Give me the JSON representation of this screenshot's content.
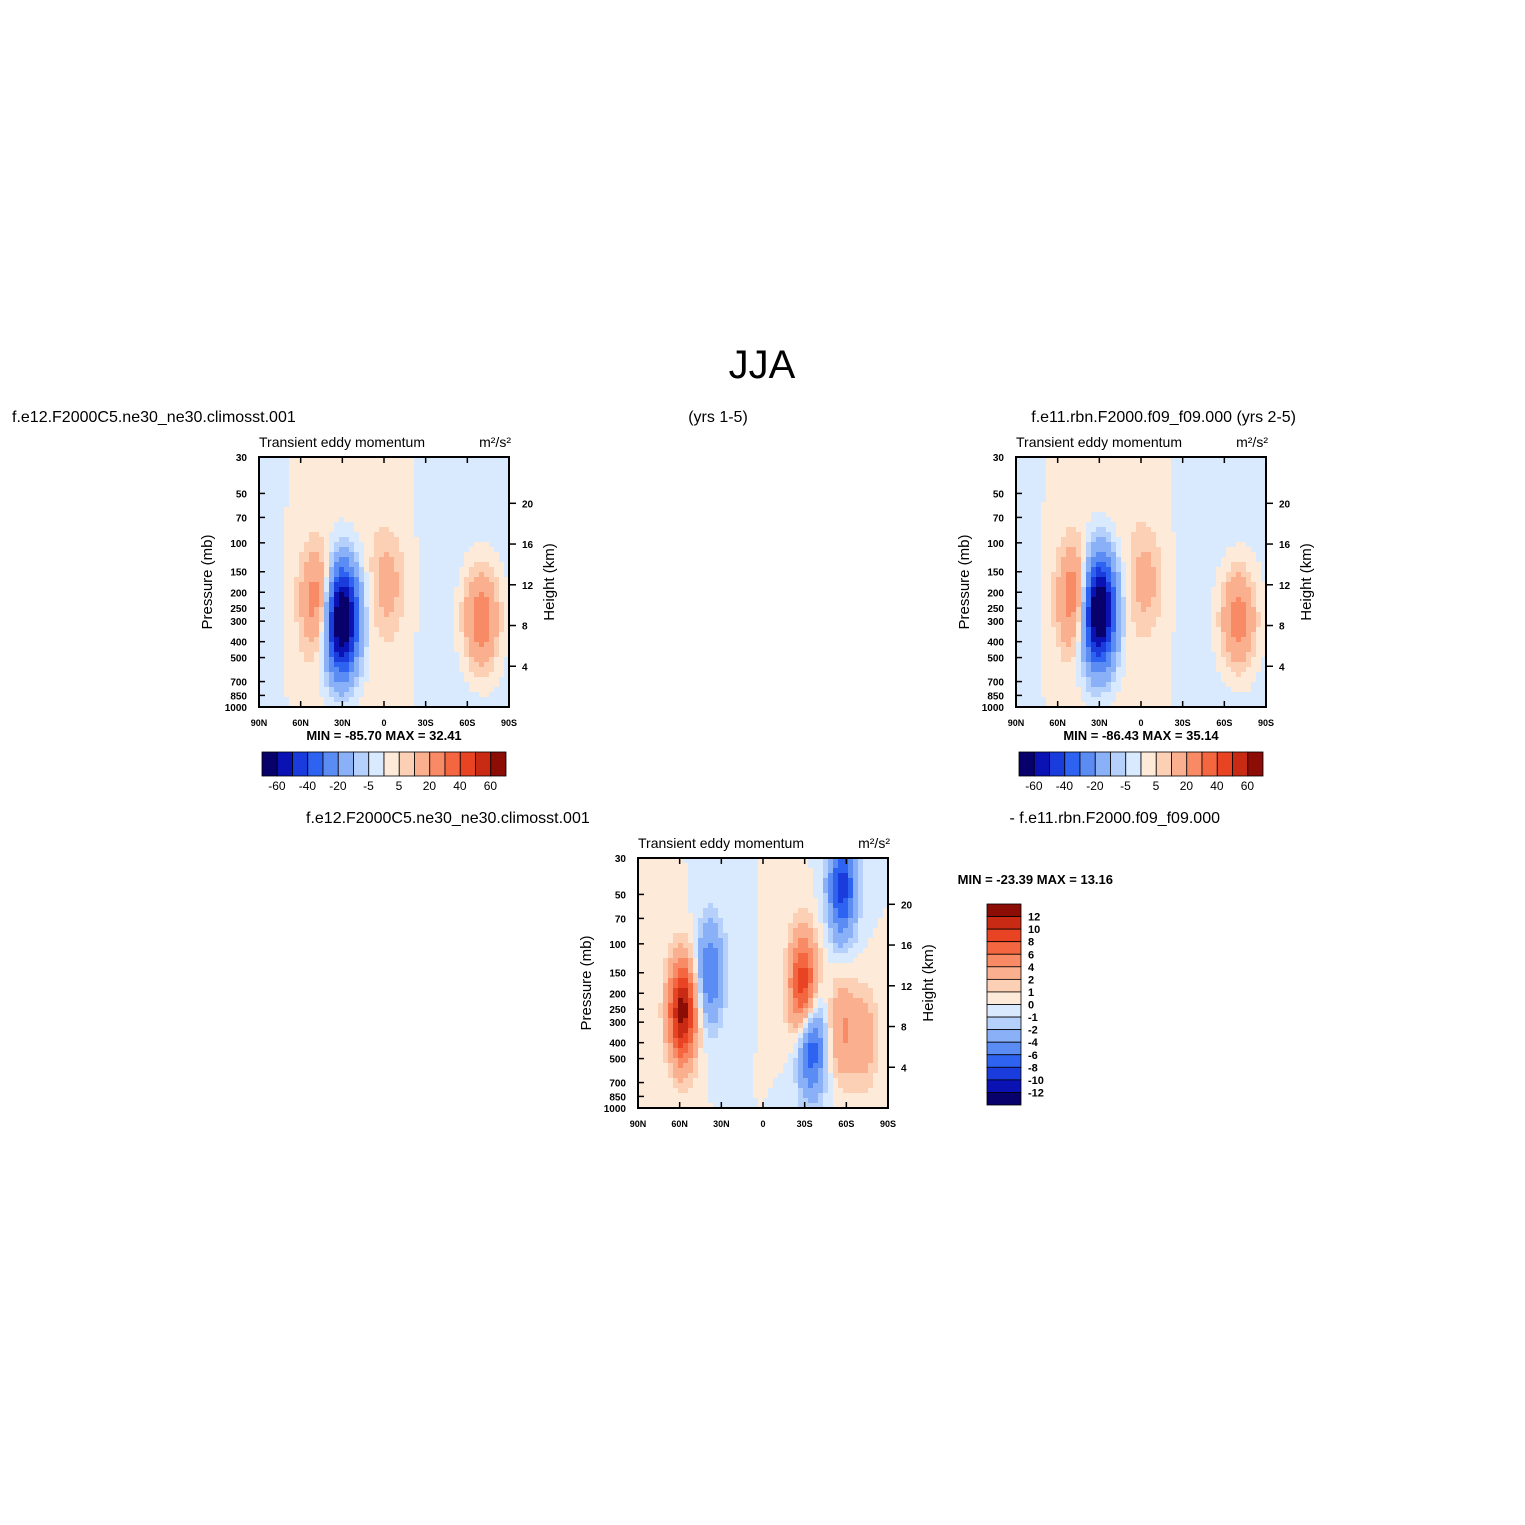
{
  "figure": {
    "title": "JJA",
    "case1_label": "f.e12.F2000C5.ne30_ne30.climosst.001",
    "case1_years": "(yrs 1-5)",
    "case2_label": "f.e11.rbn.F2000.f09_f09.000 (yrs 2-5)",
    "diff_label_a": "f.e12.F2000C5.ne30_ne30.climosst.001",
    "diff_label_b": "- f.e11.rbn.F2000.f09_f09.000"
  },
  "colors": {
    "diverging": [
      "#08006b",
      "#0a12b4",
      "#1a3cdc",
      "#2e62f0",
      "#5a8cf4",
      "#8ab0f8",
      "#b6d0fc",
      "#daeafe",
      "#feead8",
      "#fcd0b4",
      "#fab08e",
      "#f88a66",
      "#f46640",
      "#e84424",
      "#c82a14",
      "#8c0c06"
    ]
  },
  "chart_data": [
    {
      "type": "heatmap",
      "panel": "case1",
      "title": "Transient eddy momentum",
      "units": "m²/s²",
      "ylabel": "Pressure (mb)",
      "y2label": "Height (km)",
      "x_ticks": [
        "90N",
        "60N",
        "30N",
        "0",
        "30S",
        "60S",
        "90S"
      ],
      "y_ticks": [
        "30",
        "50",
        "70",
        "100",
        "150",
        "200",
        "250",
        "300",
        "400",
        "500",
        "700",
        "850",
        "1000"
      ],
      "y2_ticks": [
        "20",
        "16",
        "12",
        "8",
        "4"
      ],
      "stats": "MIN = -85.70   MAX =  32.41",
      "min": -85.7,
      "max": 32.41,
      "colorbar": {
        "orientation": "horizontal",
        "labels": [
          "-60",
          "-40",
          "-20",
          "-5",
          "5",
          "20",
          "40",
          "60"
        ]
      },
      "features": [
        {
          "lat": 31,
          "p": 290,
          "amp": -85.7
        },
        {
          "lat": 46,
          "p": 230,
          "amp": 32
        },
        {
          "lat": -70,
          "p": 290,
          "amp": 30
        },
        {
          "lat": -3,
          "p": 180,
          "amp": 12
        }
      ]
    },
    {
      "type": "heatmap",
      "panel": "case2",
      "title": "Transient eddy momentum",
      "units": "m²/s²",
      "ylabel": "Pressure (mb)",
      "y2label": "Height (km)",
      "x_ticks": [
        "90N",
        "60N",
        "30N",
        "0",
        "30S",
        "60S",
        "90S"
      ],
      "y_ticks": [
        "30",
        "50",
        "70",
        "100",
        "150",
        "200",
        "250",
        "300",
        "400",
        "500",
        "700",
        "850",
        "1000"
      ],
      "y2_ticks": [
        "20",
        "16",
        "12",
        "8",
        "4"
      ],
      "stats": "MIN = -86.43   MAX =  35.14",
      "min": -86.43,
      "max": 35.14,
      "colorbar": {
        "orientation": "horizontal",
        "labels": [
          "-60",
          "-40",
          "-20",
          "-5",
          "5",
          "20",
          "40",
          "60"
        ]
      },
      "features": [
        {
          "lat": 31,
          "p": 260,
          "amp": -86.4
        },
        {
          "lat": 46,
          "p": 220,
          "amp": 35
        },
        {
          "lat": -70,
          "p": 290,
          "amp": 28
        },
        {
          "lat": -3,
          "p": 170,
          "amp": 12
        }
      ]
    },
    {
      "type": "heatmap",
      "panel": "difference",
      "title": "Transient eddy momentum",
      "units": "m²/s²",
      "ylabel": "Pressure (mb)",
      "y2label": "Height (km)",
      "x_ticks": [
        "90N",
        "60N",
        "30N",
        "0",
        "30S",
        "60S",
        "90S"
      ],
      "y_ticks": [
        "30",
        "50",
        "70",
        "100",
        "150",
        "200",
        "250",
        "300",
        "400",
        "500",
        "700",
        "850",
        "1000"
      ],
      "y2_ticks": [
        "20",
        "16",
        "12",
        "8",
        "4"
      ],
      "stats": "MIN = -23.39   MAX =   13.16",
      "min": -23.39,
      "max": 13.16,
      "colorbar": {
        "orientation": "vertical",
        "labels": [
          "12",
          "10",
          "8",
          "6",
          "4",
          "2",
          "1",
          "0",
          "-1",
          "-2",
          "-4",
          "-6",
          "-8",
          "-10",
          "-12"
        ]
      },
      "features": [
        {
          "lat": 58,
          "p": 260,
          "amp": 13
        },
        {
          "lat": 38,
          "p": 150,
          "amp": -6
        },
        {
          "lat": -29,
          "p": 180,
          "amp": 10
        },
        {
          "lat": -35,
          "p": 420,
          "amp": -8
        },
        {
          "lat": -57,
          "p": 330,
          "amp": 4
        },
        {
          "lat": -73,
          "p": 380,
          "amp": 3
        },
        {
          "lat": -57,
          "p": 45,
          "amp": -9
        }
      ]
    }
  ]
}
